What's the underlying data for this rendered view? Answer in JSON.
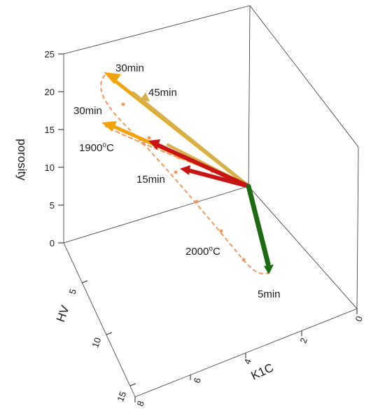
{
  "chart_data": {
    "type": "3d-vector",
    "axes": {
      "x": {
        "label": "K1C",
        "ticks": [
          "0",
          "2",
          "4",
          "6",
          "8"
        ]
      },
      "y": {
        "label": "HV",
        "ticks": [
          "15",
          "10",
          "5"
        ]
      },
      "z": {
        "label": "porosity",
        "ticks": [
          "0",
          "5",
          "10",
          "15",
          "20",
          "25"
        ]
      }
    },
    "annotations": [
      {
        "text": "30min"
      },
      {
        "text": "45min"
      },
      {
        "text": "30min"
      },
      {
        "text": "1900",
        "sup": "o",
        "tail": "C"
      },
      {
        "text": "15min"
      },
      {
        "text": "2000",
        "sup": "o",
        "tail": "C"
      },
      {
        "text": "5min"
      }
    ],
    "arrows": [
      {
        "color": "#F0A30A",
        "to": "30min (upper)"
      },
      {
        "color": "#D6B04A",
        "to": "45min"
      },
      {
        "color": "#F0A30A",
        "to": "30min (1900oC)"
      },
      {
        "color": "#C81414",
        "to": "1900oC"
      },
      {
        "color": "#C81414",
        "to": "15min"
      },
      {
        "color": "#1E6A12",
        "to": "5min"
      }
    ],
    "curves": [
      {
        "name": "1900oC",
        "color": "#F4975C",
        "style": "dashed"
      },
      {
        "name": "2000oC",
        "color": "#F4975C",
        "style": "dashed"
      }
    ]
  }
}
